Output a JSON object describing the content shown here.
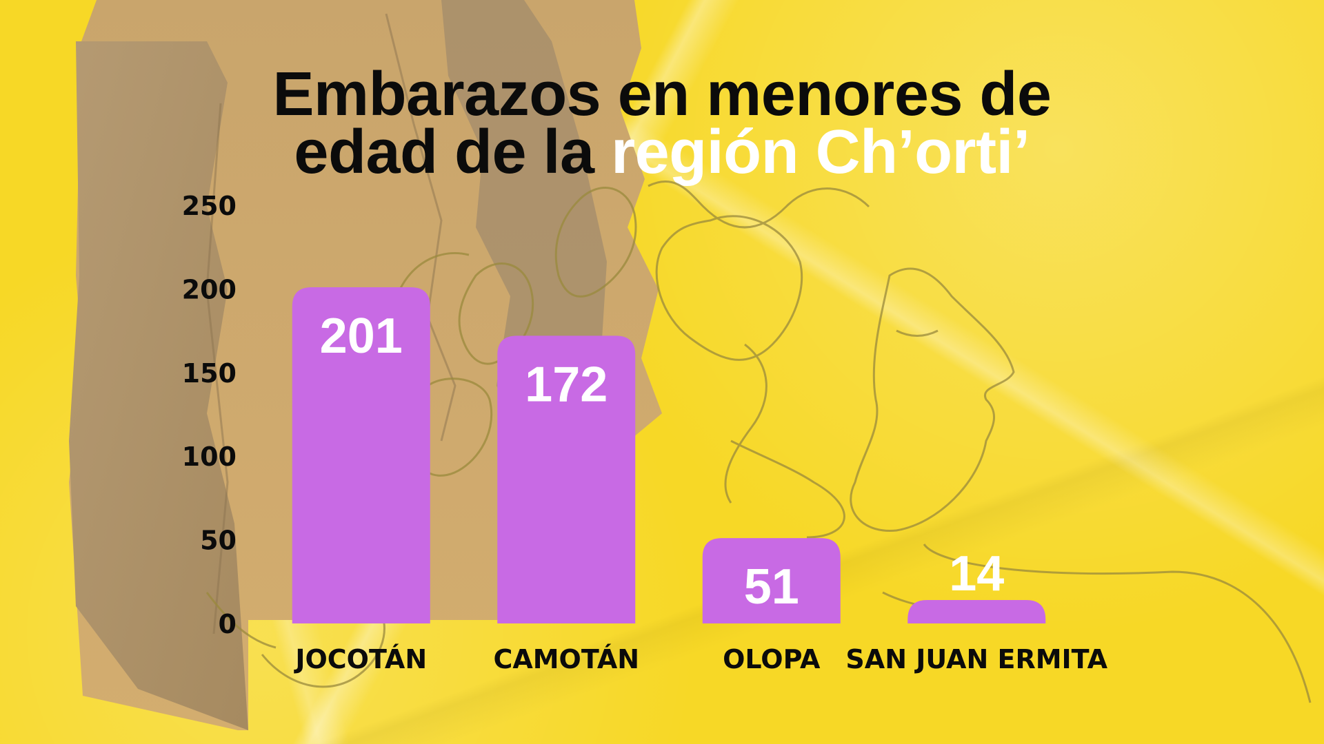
{
  "title_part1": "Embarazos en menores de",
  "title_part2": "edad de la",
  "title_highlight": "región Ch’orti’",
  "colors": {
    "background": "#f7d826",
    "bar": "#c86ae4",
    "label": "#ffffff",
    "text": "#0b0b0b",
    "cardboard": "#b99a6b",
    "line_art": "#9a8a3c"
  },
  "chart_data": {
    "type": "bar",
    "title": "Embarazos en menores de edad de la región Ch’orti’",
    "categories": [
      "JOCOTÁN",
      "CAMOTÁN",
      "OLOPA",
      "SAN JUAN ERMITA"
    ],
    "values": [
      201,
      172,
      51,
      14
    ],
    "data_labels": [
      "201",
      "172",
      "51",
      "14"
    ],
    "yticks": [
      "0",
      "50",
      "100",
      "150",
      "200",
      "250"
    ],
    "ylim": [
      0,
      250
    ],
    "xlabel": "",
    "ylabel": "",
    "grid": false,
    "legend": "none"
  }
}
